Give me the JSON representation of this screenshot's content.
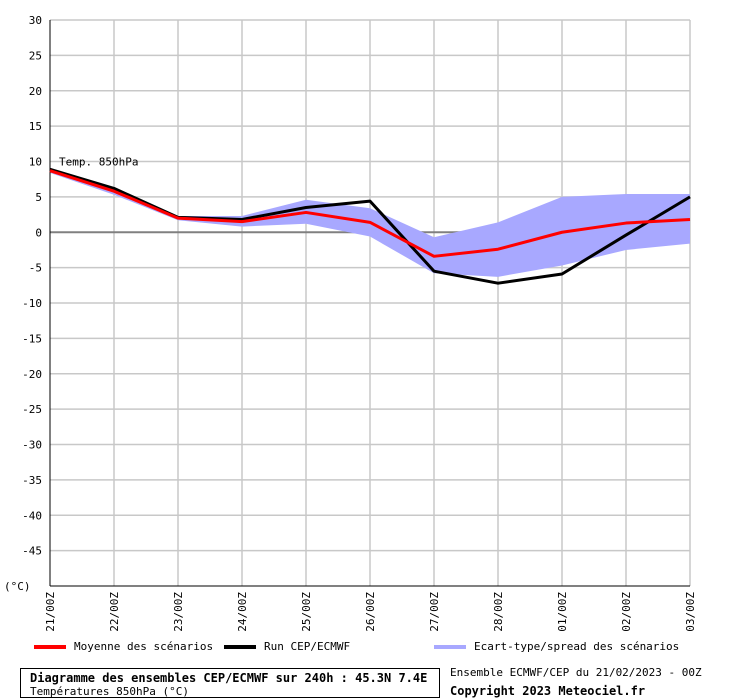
{
  "chart_data": {
    "type": "line",
    "title": "Diagramme des ensembles CEP/ECMWF sur 240h : 45.3N 7.4E",
    "subtitle": "Températures 850hPa (°C)",
    "ylabel": "(°C)",
    "annotation": "Temp. 850hPa",
    "ylim": [
      -50,
      30
    ],
    "yticks": [
      30,
      25,
      20,
      15,
      10,
      5,
      0,
      -5,
      -10,
      -15,
      -20,
      -25,
      -30,
      -35,
      -40,
      -45
    ],
    "categories": [
      "21/00Z",
      "22/00Z",
      "23/00Z",
      "24/00Z",
      "25/00Z",
      "26/00Z",
      "27/00Z",
      "28/00Z",
      "01/00Z",
      "02/00Z",
      "03/00Z"
    ],
    "grid": true,
    "series": [
      {
        "name": "Moyenne des scénarios",
        "color": "#ff0000",
        "values": [
          8.7,
          5.8,
          2.0,
          1.5,
          2.8,
          1.4,
          -3.4,
          -2.4,
          0.0,
          1.3,
          1.8
        ]
      },
      {
        "name": "Run CEP/ECMWF",
        "color": "#000000",
        "values": [
          8.9,
          6.2,
          2.1,
          1.8,
          3.5,
          4.4,
          -5.5,
          -7.2,
          -5.9,
          -0.4,
          5.0
        ]
      }
    ],
    "band": {
      "name": "Ecart-type/spread des scénarios",
      "color": "#a8a8ff",
      "upper": [
        9.0,
        6.3,
        2.3,
        2.3,
        4.6,
        3.4,
        -0.7,
        1.4,
        5.0,
        5.4,
        5.4
      ],
      "lower": [
        8.4,
        5.3,
        1.7,
        0.8,
        1.2,
        -0.6,
        -5.8,
        -6.3,
        -4.7,
        -2.5,
        -1.6
      ]
    }
  },
  "footer": {
    "run_info": "Ensemble ECMWF/CEP du 21/02/2023 - 00Z",
    "copyright": "Copyright 2023 Meteociel.fr"
  }
}
